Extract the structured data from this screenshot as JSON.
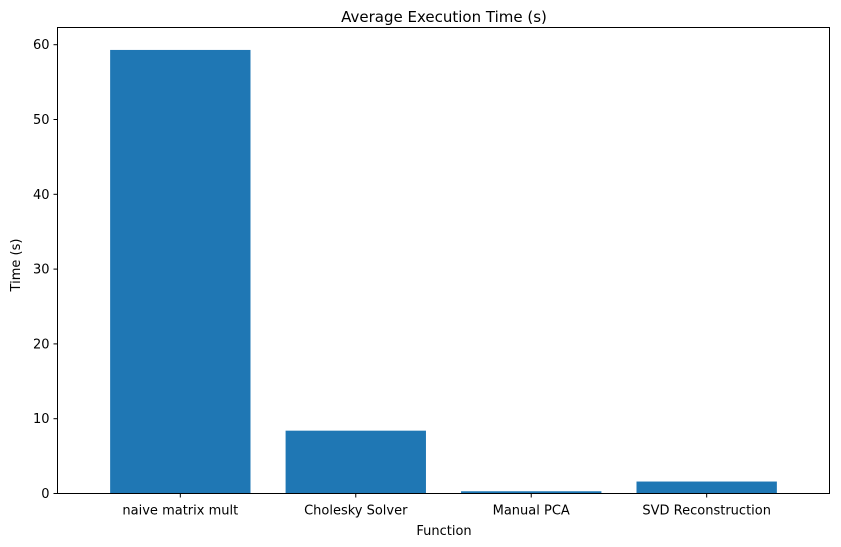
{
  "chart_data": {
    "type": "bar",
    "title": "Average Execution Time (s)",
    "xlabel": "Function",
    "ylabel": "Time (s)",
    "categories": [
      "naive matrix mult",
      "Cholesky Solver",
      "Manual PCA",
      "SVD Reconstruction"
    ],
    "values": [
      59.3,
      8.4,
      0.3,
      1.6
    ],
    "ylim": [
      0,
      62.3
    ],
    "yticks": [
      0,
      10,
      20,
      30,
      40,
      50,
      60
    ],
    "bar_color": "#1f77b4",
    "grid": false,
    "legend": "none"
  }
}
